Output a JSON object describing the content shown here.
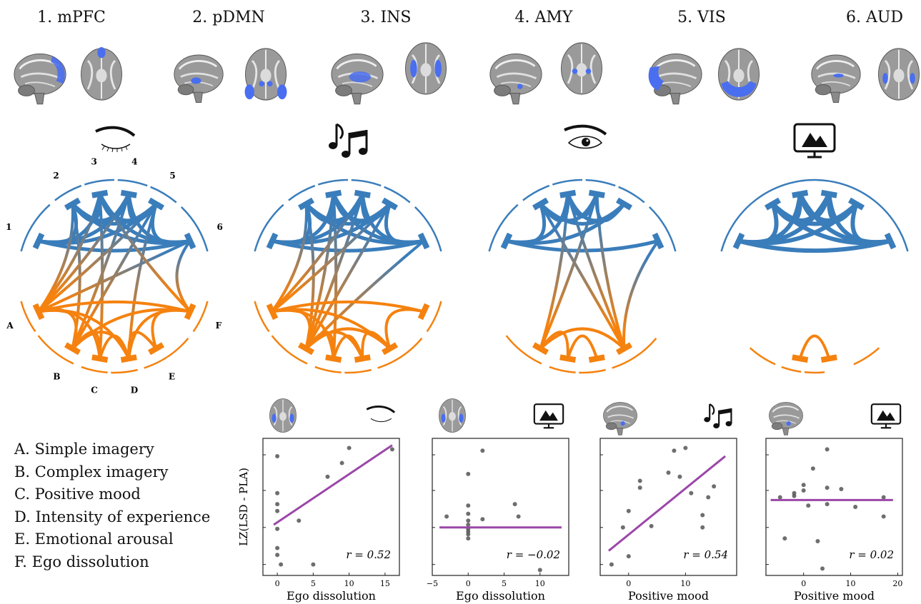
{
  "networks": [
    {
      "key": "1",
      "label": "1. mPFC"
    },
    {
      "key": "2",
      "label": "2. pDMN"
    },
    {
      "key": "3",
      "label": "3. INS"
    },
    {
      "key": "4",
      "label": "4. AMY"
    },
    {
      "key": "5",
      "label": "5. VIS"
    },
    {
      "key": "6",
      "label": "6. AUD"
    }
  ],
  "circle_top_labels": [
    "1",
    "2",
    "3",
    "4",
    "5",
    "6"
  ],
  "circle_bottom_labels": [
    "A",
    "B",
    "C",
    "D",
    "E",
    "F"
  ],
  "condition_icons": [
    "closed-eye-icon",
    "music-notes-icon",
    "open-eye-icon",
    "monitor-mountain-icon"
  ],
  "legend": [
    {
      "key": "A",
      "text": "A. Simple imagery"
    },
    {
      "key": "B",
      "text": "B. Complex imagery"
    },
    {
      "key": "C",
      "text": "C. Positive mood"
    },
    {
      "key": "D",
      "text": "D. Intensity of experience"
    },
    {
      "key": "E",
      "text": "E. Emotional arousal"
    },
    {
      "key": "F",
      "text": "F. Ego dissolution"
    }
  ],
  "colors": {
    "network_blue": "#3a7dbb",
    "rating_orange": "#f5820f",
    "fit_line": "#9b47a8",
    "brain_highlight": "#4a6ef0"
  },
  "chart_data": [
    {
      "type": "scatter",
      "icon": "closed-eye-icon",
      "ylabel": "LZ(LSD - PLA)",
      "xlabel": "Ego dissolution",
      "xlim": [
        -2,
        17
      ],
      "xticks": [
        0,
        5,
        10,
        15
      ],
      "annotation": "r = 0.52",
      "points": [
        [
          0,
          0.87
        ],
        [
          0,
          0.6
        ],
        [
          0,
          0.52
        ],
        [
          0,
          0.47
        ],
        [
          0,
          0.34
        ],
        [
          0,
          0.2
        ],
        [
          0,
          0.15
        ],
        [
          0.5,
          0.08
        ],
        [
          3,
          0.4
        ],
        [
          5,
          0.08
        ],
        [
          7,
          0.72
        ],
        [
          9,
          0.82
        ],
        [
          10,
          0.93
        ],
        [
          16,
          0.92
        ]
      ],
      "fit": [
        [
          -0.5,
          0.37
        ],
        [
          16,
          0.95
        ]
      ],
      "ylim": [
        0,
        1
      ]
    },
    {
      "type": "scatter",
      "icon": "monitor-mountain-icon",
      "xlabel": "Ego dissolution",
      "xlim": [
        -5,
        14
      ],
      "xticks": [
        -5,
        0,
        5,
        10
      ],
      "annotation": "r = −0.02",
      "points": [
        [
          0,
          0.74
        ],
        [
          0,
          0.51
        ],
        [
          0,
          0.45
        ],
        [
          0,
          0.4
        ],
        [
          0,
          0.37
        ],
        [
          0,
          0.34
        ],
        [
          0,
          0.32
        ],
        [
          0,
          0.3
        ],
        [
          0,
          0.27
        ],
        [
          -3,
          0.43
        ],
        [
          2,
          0.91
        ],
        [
          2,
          0.41
        ],
        [
          6.5,
          0.52
        ],
        [
          7,
          0.43
        ],
        [
          10,
          0.04
        ]
      ],
      "fit": [
        [
          -4,
          0.35
        ],
        [
          13,
          0.35
        ]
      ],
      "ylim": [
        0,
        1
      ]
    },
    {
      "type": "scatter",
      "icon": "music-notes-icon",
      "xlabel": "Positive mood",
      "xlim": [
        -5,
        19
      ],
      "xticks": [
        0,
        10
      ],
      "annotation": "r = 0.54",
      "points": [
        [
          -3,
          0.08
        ],
        [
          -1,
          0.35
        ],
        [
          0,
          0.47
        ],
        [
          0,
          0.14
        ],
        [
          2,
          0.69
        ],
        [
          2,
          0.64
        ],
        [
          4,
          0.36
        ],
        [
          7,
          0.75
        ],
        [
          8,
          0.91
        ],
        [
          9,
          0.72
        ],
        [
          10,
          0.93
        ],
        [
          11,
          0.6
        ],
        [
          13,
          0.44
        ],
        [
          13,
          0.35
        ],
        [
          14,
          0.57
        ],
        [
          15,
          0.65
        ]
      ],
      "fit": [
        [
          -3.5,
          0.18
        ],
        [
          17,
          0.87
        ]
      ],
      "ylim": [
        0,
        1
      ]
    },
    {
      "type": "scatter",
      "icon": "monitor-mountain-icon",
      "xlabel": "Positive mood",
      "xlim": [
        -8,
        21
      ],
      "xticks": [
        0,
        10,
        20
      ],
      "annotation": "r = 0.02",
      "points": [
        [
          -5,
          0.57
        ],
        [
          -4,
          0.27
        ],
        [
          -2,
          0.58
        ],
        [
          -2,
          0.6
        ],
        [
          0,
          0.66
        ],
        [
          0,
          0.62
        ],
        [
          1,
          0.51
        ],
        [
          2,
          0.78
        ],
        [
          3,
          0.25
        ],
        [
          4,
          0.05
        ],
        [
          5,
          0.92
        ],
        [
          5,
          0.64
        ],
        [
          5,
          0.52
        ],
        [
          8,
          0.63
        ],
        [
          11,
          0.5
        ],
        [
          17,
          0.57
        ],
        [
          17,
          0.43
        ]
      ],
      "fit": [
        [
          -7,
          0.55
        ],
        [
          19,
          0.55
        ]
      ],
      "ylim": [
        0,
        1
      ]
    }
  ]
}
